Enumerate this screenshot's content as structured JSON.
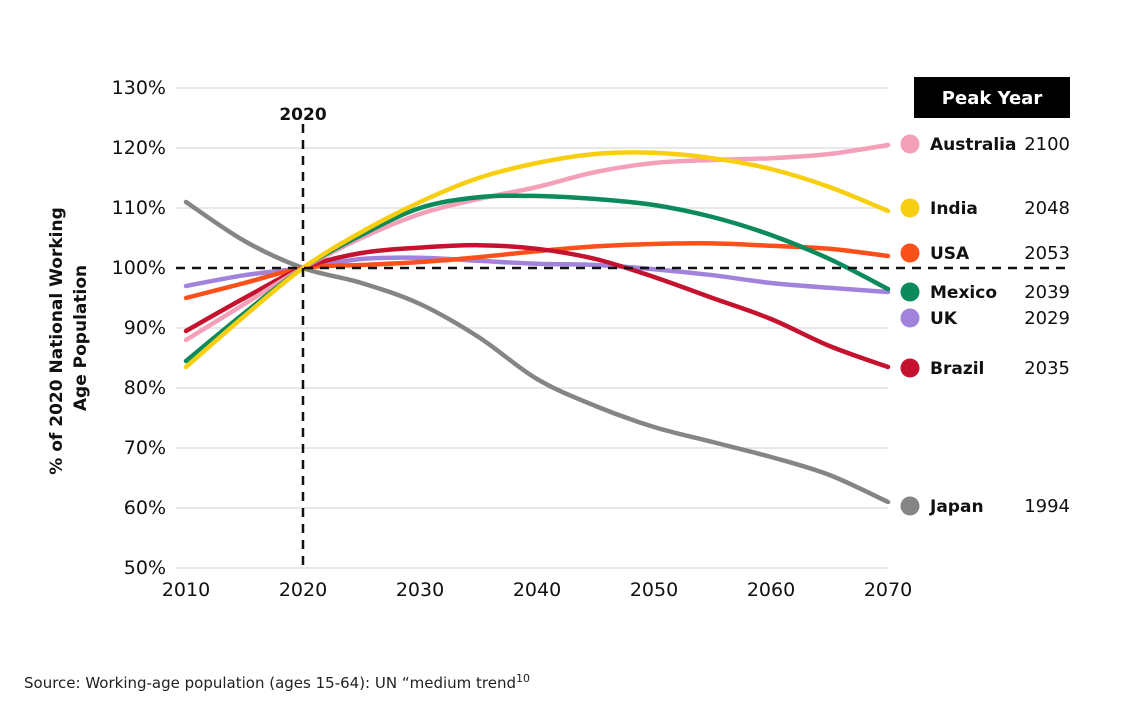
{
  "chart_data": {
    "type": "line",
    "title": "",
    "xlabel": "",
    "ylabel_lines": [
      "% of 2020 National Working",
      "Age Population"
    ],
    "xlim": [
      2010,
      2070
    ],
    "ylim": [
      50,
      130
    ],
    "x_ticks": [
      "2010",
      "2020",
      "2030",
      "2040",
      "2050",
      "2060",
      "2070"
    ],
    "y_ticks": [
      "50%",
      "60%",
      "70%",
      "80%",
      "90%",
      "100%",
      "110%",
      "120%",
      "130%"
    ],
    "grid": "horizontal",
    "reference_lines": {
      "vertical_x": 2020,
      "vertical_label": "2020",
      "horizontal_y": 100
    },
    "legend_header": "Peak Year",
    "legend_placement": "right",
    "x": [
      2010,
      2015,
      2020,
      2025,
      2030,
      2035,
      2040,
      2045,
      2050,
      2055,
      2060,
      2065,
      2070
    ],
    "series": [
      {
        "name": "Australia",
        "peak_year": "2100",
        "color": "#f4a0b9",
        "values": [
          88,
          94,
          100,
          105,
          109,
          111.5,
          113.5,
          116,
          117.5,
          118,
          118.3,
          119,
          120.5
        ]
      },
      {
        "name": "India",
        "peak_year": "2048",
        "color": "#f8cf10",
        "values": [
          83.5,
          92,
          100,
          106,
          111,
          115,
          117.5,
          119,
          119.2,
          118.3,
          116.5,
          113.5,
          109.5
        ]
      },
      {
        "name": "USA",
        "peak_year": "2053",
        "color": "#fb5019",
        "values": [
          95,
          97.5,
          100,
          100.5,
          101,
          101.8,
          102.8,
          103.6,
          104,
          104.1,
          103.7,
          103.2,
          102
        ]
      },
      {
        "name": "Mexico",
        "peak_year": "2039",
        "color": "#0b8a5c",
        "values": [
          84.5,
          92.5,
          100,
          105.5,
          110,
          111.8,
          112,
          111.5,
          110.5,
          108.5,
          105.5,
          101.5,
          96.5
        ]
      },
      {
        "name": "UK",
        "peak_year": "2029",
        "color": "#a283dc",
        "values": [
          97,
          98.8,
          100,
          101.5,
          101.7,
          101.2,
          100.7,
          100.5,
          99.8,
          98.8,
          97.5,
          96.7,
          96
        ]
      },
      {
        "name": "Brazil",
        "peak_year": "2035",
        "color": "#c4122f",
        "values": [
          89.5,
          95,
          100,
          102.5,
          103.4,
          103.8,
          103.2,
          101.5,
          98.5,
          95,
          91.5,
          87,
          83.5
        ]
      },
      {
        "name": "Japan",
        "peak_year": "1994",
        "color": "#858585",
        "values": [
          111,
          104.5,
          100,
          97.5,
          94,
          88.5,
          81.5,
          77,
          73.5,
          71,
          68.5,
          65.5,
          61
        ]
      }
    ]
  },
  "source": {
    "text": "Source: Working-age population (ages 15-64): UN “medium trend",
    "footnote": "10"
  }
}
